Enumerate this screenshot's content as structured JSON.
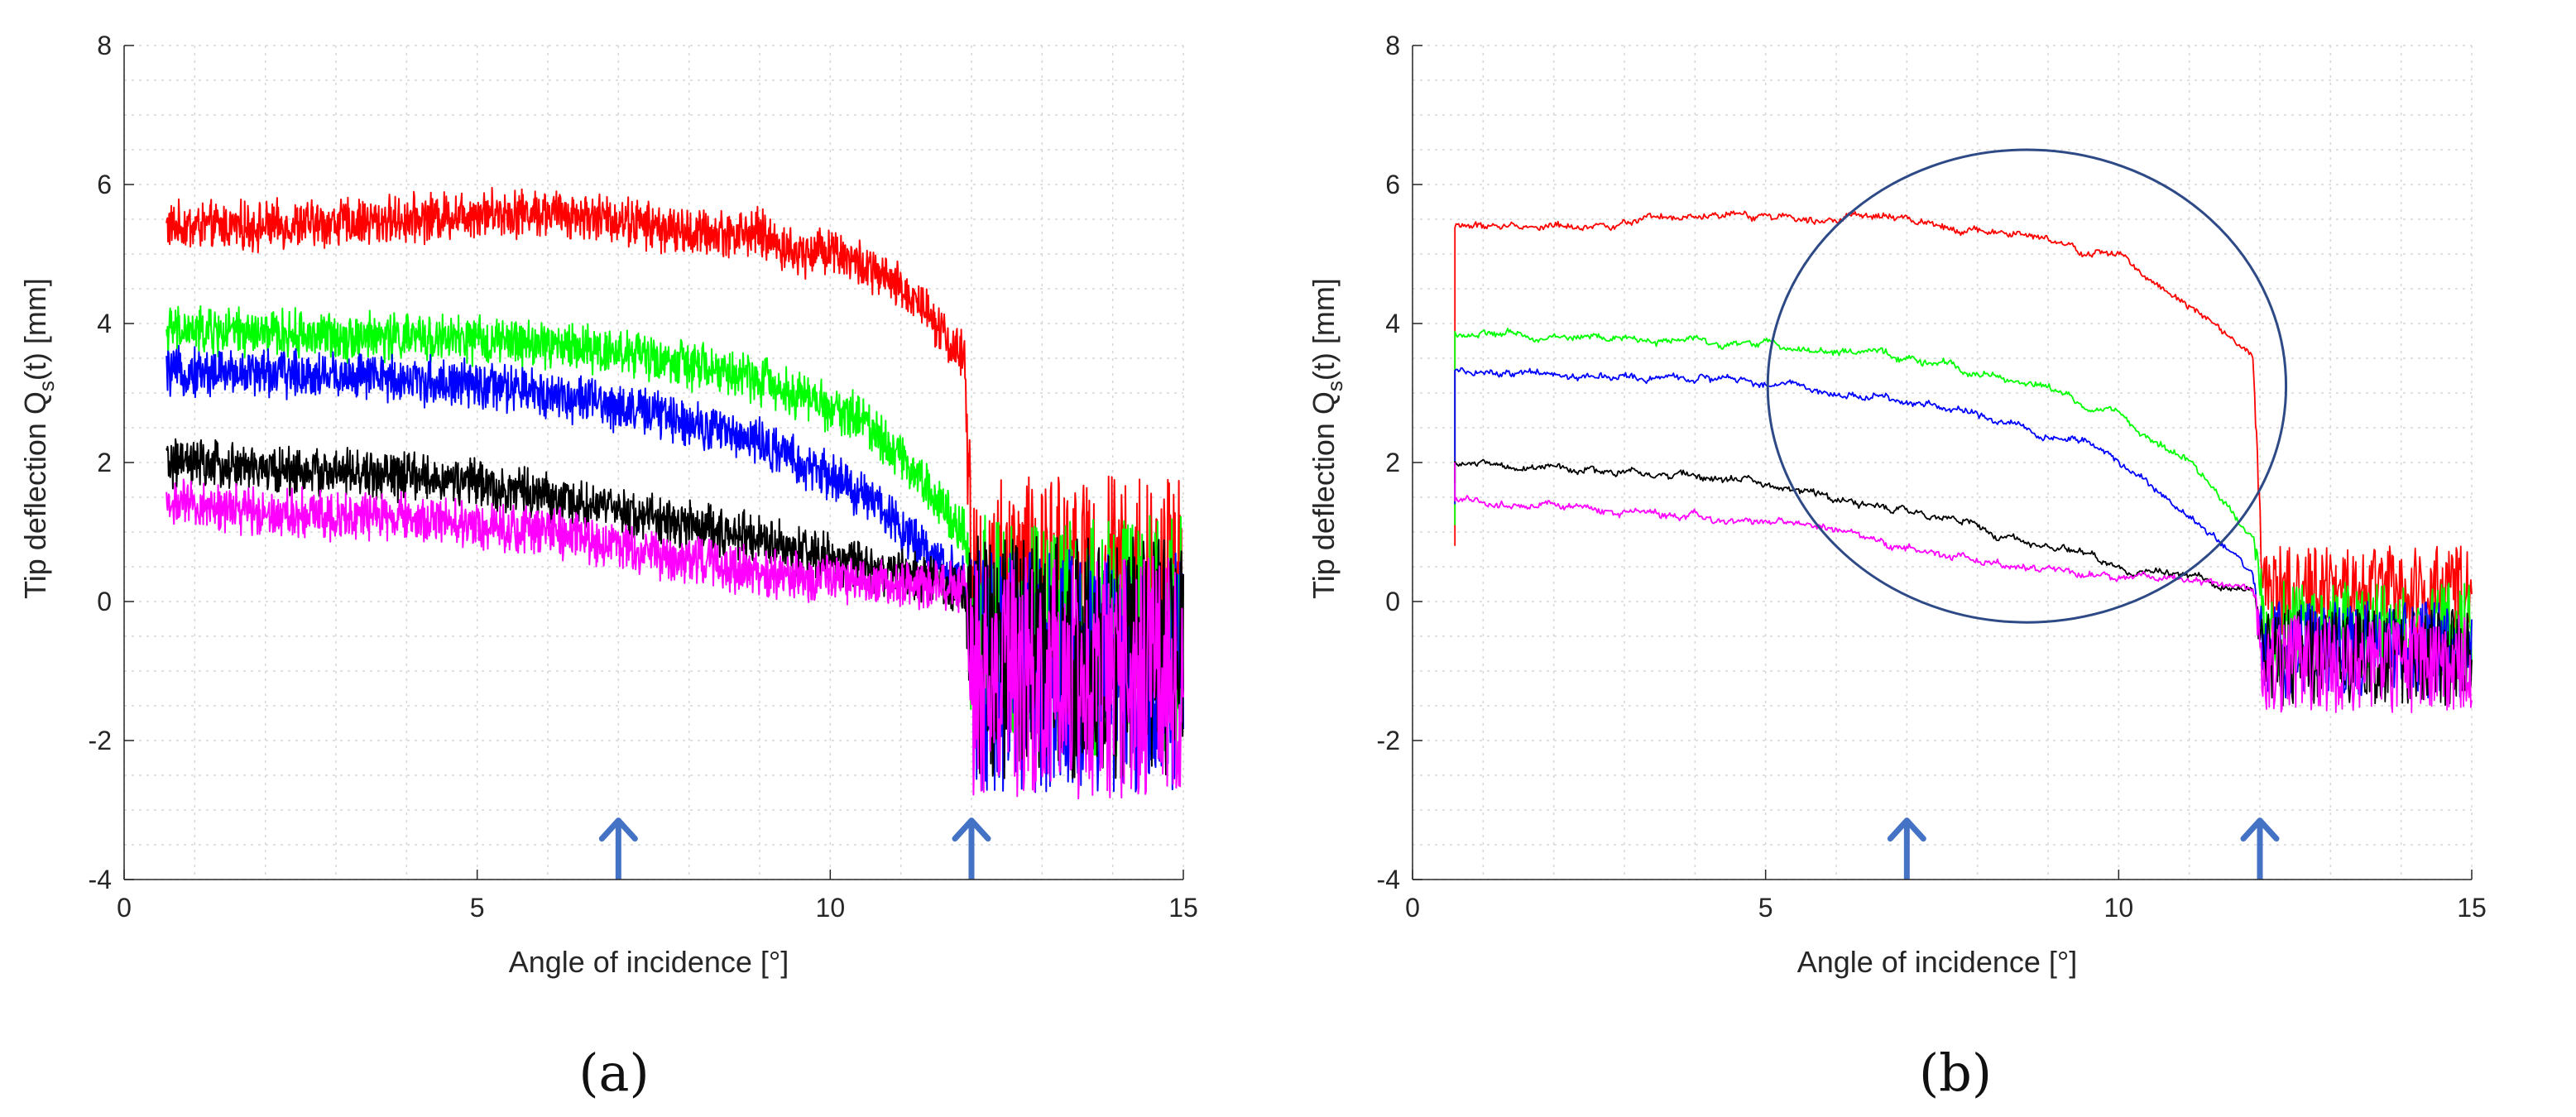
{
  "chart_data": [
    {
      "type": "line",
      "panel_label": "(a)",
      "xlabel": "Angle of incidence [°]",
      "ylabel": "Tip deflection Q_s(t) [mm]",
      "ylabel_parts": {
        "pre": "Tip deflection Q",
        "sub": "s",
        "post": "(t) [mm]"
      },
      "xlim": [
        0,
        15
      ],
      "ylim": [
        -4,
        8
      ],
      "xticks": [
        0,
        5,
        10,
        15
      ],
      "yticks": [
        -4,
        -2,
        0,
        2,
        4,
        6,
        8
      ],
      "grid": true,
      "noise": "high",
      "x_start": 0.6,
      "stall_angle": 11.9,
      "arrows_at_x": [
        7,
        12
      ],
      "arrow_color": "#4472c4",
      "series": [
        {
          "name": "red",
          "color": "#ff0000",
          "x": [
            0.6,
            2,
            4,
            5,
            6,
            7,
            8,
            9,
            9.5,
            10,
            10.5,
            11,
            11.4,
            11.7,
            11.9
          ],
          "y": [
            5.4,
            5.4,
            5.5,
            5.6,
            5.6,
            5.5,
            5.3,
            5.3,
            5.0,
            5.1,
            4.8,
            4.5,
            4.2,
            3.7,
            3.5
          ]
        },
        {
          "name": "green",
          "color": "#00ff00",
          "x": [
            0.6,
            2,
            4,
            5,
            6,
            7,
            8,
            9,
            9.5,
            10,
            10.5,
            11,
            11.5,
            11.9
          ],
          "y": [
            3.9,
            3.85,
            3.8,
            3.75,
            3.7,
            3.6,
            3.4,
            3.2,
            3.0,
            2.8,
            2.6,
            2.1,
            1.5,
            1.0
          ]
        },
        {
          "name": "blue",
          "color": "#0000ff",
          "x": [
            0.6,
            2,
            4,
            5,
            6,
            7,
            8,
            9,
            9.5,
            10,
            10.5,
            11,
            11.5,
            11.9
          ],
          "y": [
            3.3,
            3.3,
            3.2,
            3.1,
            3.0,
            2.8,
            2.6,
            2.3,
            2.0,
            1.8,
            1.5,
            1.1,
            0.6,
            0.3
          ]
        },
        {
          "name": "black",
          "color": "#000000",
          "x": [
            0.6,
            2,
            4,
            5,
            6,
            7,
            8,
            9,
            10,
            11,
            11.9
          ],
          "y": [
            2.0,
            1.9,
            1.8,
            1.7,
            1.5,
            1.3,
            1.1,
            0.9,
            0.6,
            0.4,
            0.2
          ]
        },
        {
          "name": "magenta",
          "color": "#ff00ff",
          "x": [
            0.6,
            2,
            4,
            5,
            6,
            7,
            8,
            9,
            10,
            11,
            11.9
          ],
          "y": [
            1.4,
            1.3,
            1.2,
            1.1,
            1.0,
            0.8,
            0.6,
            0.4,
            0.3,
            0.25,
            0.2
          ]
        }
      ],
      "post_stall": {
        "x_range": [
          11.9,
          15
        ],
        "offsets": {
          "red": 0.05,
          "green": -0.5,
          "blue": -1.0,
          "black": -0.8,
          "magenta": -1.1
        },
        "amplitude": 3.5
      }
    },
    {
      "type": "line",
      "panel_label": "(b)",
      "xlabel": "Angle of incidence [°]",
      "ylabel": "Tip deflection Q_s(t) [mm]",
      "ylabel_parts": {
        "pre": "Tip deflection Q",
        "sub": "s",
        "post": "(t) [mm]"
      },
      "xlim": [
        0,
        15
      ],
      "ylim": [
        -4,
        8
      ],
      "xticks": [
        0,
        5,
        10,
        15
      ],
      "yticks": [
        -4,
        -2,
        0,
        2,
        4,
        6,
        8
      ],
      "grid": true,
      "noise": "low",
      "x_start": 0.6,
      "stall_angle": 11.9,
      "arrows_at_x": [
        7,
        12
      ],
      "arrow_color": "#4472c4",
      "circle": {
        "center_x": 8.7,
        "center_y": 3.1,
        "radius_x": 3.67,
        "radius_y": 3.4,
        "color": "#2e4a86"
      },
      "series": [
        {
          "name": "red",
          "color": "#ff0000",
          "x": [
            0.6,
            2,
            4,
            5,
            6,
            7,
            8,
            9,
            9.5,
            10,
            10.5,
            11,
            11.4,
            11.7,
            11.9
          ],
          "y": [
            5.4,
            5.4,
            5.5,
            5.55,
            5.55,
            5.5,
            5.35,
            5.2,
            5.0,
            5.0,
            4.6,
            4.3,
            4.0,
            3.7,
            3.5
          ]
        },
        {
          "name": "green",
          "color": "#00ff00",
          "x": [
            0.6,
            2,
            4,
            5,
            6,
            7,
            8,
            9,
            9.5,
            10,
            10.5,
            11,
            11.5,
            11.9
          ],
          "y": [
            3.85,
            3.8,
            3.75,
            3.7,
            3.6,
            3.5,
            3.3,
            3.1,
            2.8,
            2.7,
            2.3,
            2.0,
            1.4,
            1.0
          ]
        },
        {
          "name": "blue",
          "color": "#0000ff",
          "x": [
            0.6,
            2,
            4,
            5,
            6,
            7,
            8,
            9,
            9.5,
            10,
            10.5,
            11,
            11.5,
            11.9
          ],
          "y": [
            3.3,
            3.25,
            3.2,
            3.15,
            3.0,
            2.9,
            2.7,
            2.4,
            2.3,
            2.0,
            1.6,
            1.2,
            0.8,
            0.4
          ]
        },
        {
          "name": "black",
          "color": "#000000",
          "x": [
            0.6,
            2,
            4,
            5,
            6,
            7,
            8,
            9,
            10,
            11,
            11.9
          ],
          "y": [
            2.0,
            1.9,
            1.8,
            1.7,
            1.5,
            1.3,
            1.1,
            0.8,
            0.5,
            0.35,
            0.2
          ]
        },
        {
          "name": "magenta",
          "color": "#ff00ff",
          "x": [
            0.6,
            2,
            4,
            5,
            6,
            7,
            8,
            9,
            10,
            11,
            11.9
          ],
          "y": [
            1.45,
            1.35,
            1.25,
            1.15,
            1.0,
            0.8,
            0.6,
            0.45,
            0.35,
            0.3,
            0.2
          ]
        }
      ],
      "post_stall": {
        "x_range": [
          11.9,
          15
        ],
        "offsets": {
          "red": 0.1,
          "green": -0.4,
          "blue": -0.7,
          "black": -0.8,
          "magenta": -0.9
        },
        "amplitude": 1.4
      }
    }
  ]
}
